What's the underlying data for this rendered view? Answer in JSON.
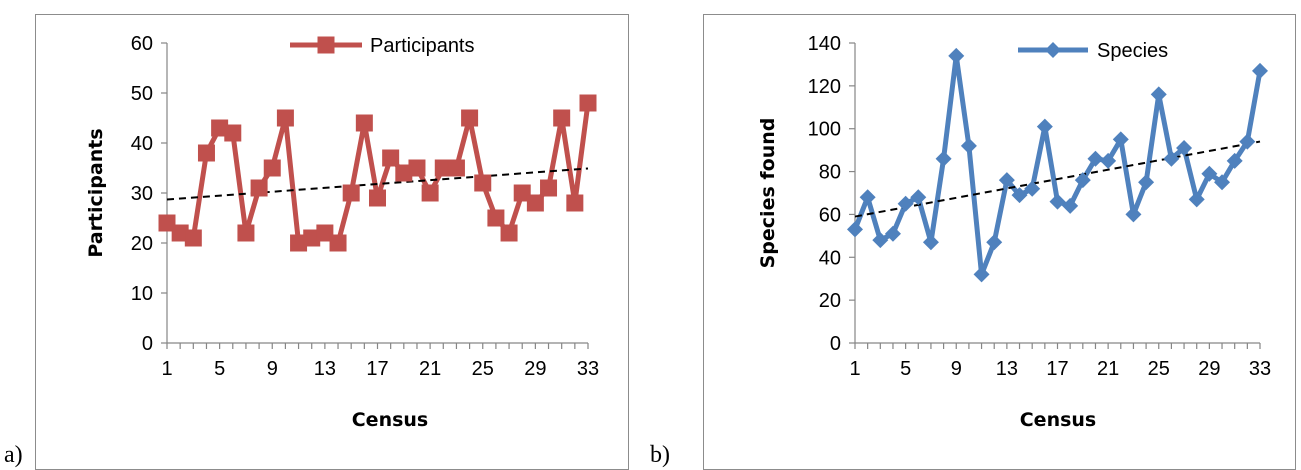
{
  "panels": {
    "a": {
      "label": "a)"
    },
    "b": {
      "label": "b)"
    }
  },
  "chart_data": [
    {
      "type": "line",
      "title": "",
      "xlabel": "Census",
      "ylabel": "Participants",
      "x": [
        1,
        2,
        3,
        4,
        5,
        6,
        7,
        8,
        9,
        10,
        11,
        12,
        13,
        14,
        15,
        16,
        17,
        18,
        19,
        20,
        21,
        22,
        23,
        24,
        25,
        26,
        27,
        28,
        29,
        30,
        31,
        32,
        33
      ],
      "x_ticks": [
        1,
        5,
        9,
        13,
        17,
        21,
        25,
        29,
        33
      ],
      "ylim": [
        0,
        60
      ],
      "y_ticks": [
        0,
        10,
        20,
        30,
        40,
        50,
        60
      ],
      "grid": false,
      "legend": "top",
      "color": "#c0504d",
      "marker": "square",
      "series": [
        {
          "name": "Participants",
          "values": [
            24,
            22,
            21,
            38,
            43,
            42,
            22,
            31,
            35,
            45,
            20,
            21,
            22,
            20,
            30,
            44,
            29,
            37,
            34,
            35,
            30,
            35,
            35,
            45,
            32,
            25,
            22,
            30,
            28,
            31,
            45,
            28,
            48
          ]
        }
      ],
      "trendline": {
        "style": "dashed",
        "start": [
          1,
          28.7
        ],
        "end": [
          33,
          34.9
        ]
      }
    },
    {
      "type": "line",
      "title": "",
      "xlabel": "Census",
      "ylabel": "Species found",
      "x": [
        1,
        2,
        3,
        4,
        5,
        6,
        7,
        8,
        9,
        10,
        11,
        12,
        13,
        14,
        15,
        16,
        17,
        18,
        19,
        20,
        21,
        22,
        23,
        24,
        25,
        26,
        27,
        28,
        29,
        30,
        31,
        32,
        33
      ],
      "x_ticks": [
        1,
        5,
        9,
        13,
        17,
        21,
        25,
        29,
        33
      ],
      "ylim": [
        0,
        140
      ],
      "y_ticks": [
        0,
        20,
        40,
        60,
        80,
        100,
        120,
        140
      ],
      "grid": false,
      "legend": "top",
      "color": "#4f81bd",
      "marker": "diamond",
      "series": [
        {
          "name": "Species",
          "values": [
            53,
            68,
            48,
            51,
            65,
            68,
            47,
            86,
            134,
            92,
            32,
            47,
            76,
            69,
            72,
            101,
            66,
            64,
            76,
            86,
            85,
            95,
            60,
            75,
            116,
            86,
            91,
            67,
            79,
            75,
            85,
            94,
            127
          ]
        }
      ],
      "trendline": {
        "style": "dashed",
        "start": [
          1,
          59
        ],
        "end": [
          33,
          94
        ]
      }
    }
  ]
}
